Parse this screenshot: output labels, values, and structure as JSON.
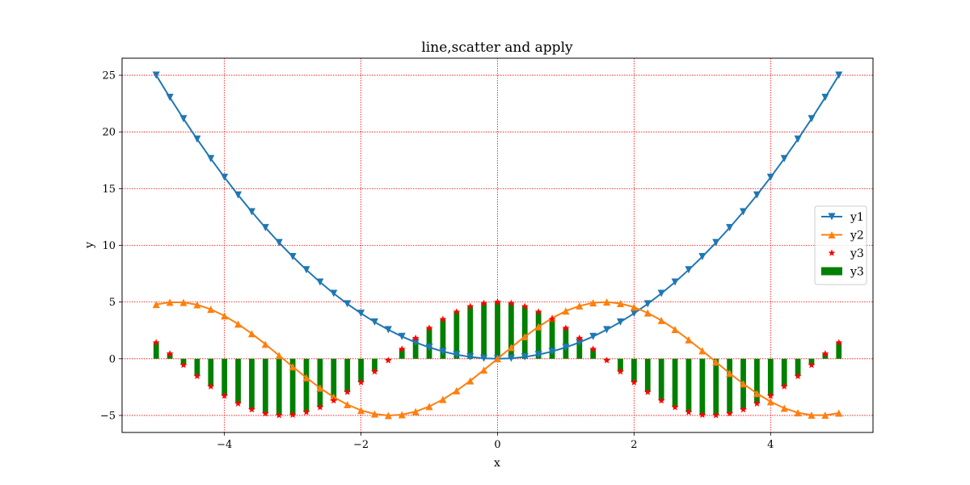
{
  "chart_data": {
    "type": "line",
    "title": "line,scatter and apply",
    "xlabel": "x",
    "ylabel": "y",
    "xlim": [
      -5.5,
      5.5
    ],
    "ylim": [
      -6.5,
      26.5
    ],
    "xticks": [
      -4,
      -2,
      0,
      2,
      4
    ],
    "xtick_labels": [
      "−4",
      "−2",
      "0",
      "2",
      "4"
    ],
    "yticks": [
      -5,
      0,
      5,
      10,
      15,
      20,
      25
    ],
    "ytick_labels": [
      "−5",
      "0",
      "5",
      "10",
      "15",
      "20",
      "25"
    ],
    "grid": true,
    "grid_color": "#ff0000",
    "legend_position": "center-right",
    "x": [
      -5.0,
      -4.8,
      -4.6,
      -4.4,
      -4.2,
      -4.0,
      -3.8,
      -3.6,
      -3.4,
      -3.2,
      -3.0,
      -2.8,
      -2.6,
      -2.4,
      -2.2,
      -2.0,
      -1.8,
      -1.6,
      -1.4,
      -1.2,
      -1.0,
      -0.8,
      -0.6,
      -0.4,
      -0.2,
      0.0,
      0.2,
      0.4,
      0.6,
      0.8,
      1.0,
      1.2,
      1.4,
      1.6,
      1.8,
      2.0,
      2.2,
      2.4,
      2.6,
      2.8,
      3.0,
      3.2,
      3.4,
      3.6,
      3.8,
      4.0,
      4.2,
      4.4,
      4.6,
      4.8,
      5.0
    ],
    "series": [
      {
        "name": "y1",
        "kind": "line",
        "marker": "triangle-down",
        "color": "#1f77b4",
        "values": [
          25.0,
          23.04,
          21.16,
          19.36,
          17.64,
          16.0,
          14.44,
          12.96,
          11.56,
          10.24,
          9.0,
          7.84,
          6.76,
          5.76,
          4.84,
          4.0,
          3.24,
          2.56,
          1.96,
          1.44,
          1.0,
          0.64,
          0.36,
          0.16,
          0.04,
          0.0,
          0.04,
          0.16,
          0.36,
          0.64,
          1.0,
          1.44,
          1.96,
          2.56,
          3.24,
          4.0,
          4.84,
          5.76,
          6.76,
          7.84,
          9.0,
          10.24,
          11.56,
          12.96,
          14.44,
          16.0,
          17.64,
          19.36,
          21.16,
          23.04,
          25.0
        ]
      },
      {
        "name": "y2",
        "kind": "line",
        "marker": "triangle-up",
        "color": "#ff7f0e",
        "values": [
          4.79,
          4.98,
          4.97,
          4.76,
          4.36,
          3.78,
          3.06,
          2.21,
          1.28,
          0.29,
          -0.71,
          -1.67,
          -2.58,
          -3.38,
          -4.04,
          -4.55,
          -4.87,
          -5.0,
          -4.93,
          -4.66,
          -4.21,
          -3.59,
          -2.82,
          -1.95,
          -0.99,
          0.0,
          0.99,
          1.95,
          2.82,
          3.59,
          4.21,
          4.66,
          4.93,
          5.0,
          4.87,
          4.55,
          4.04,
          3.38,
          2.58,
          1.67,
          0.71,
          -0.29,
          -1.28,
          -2.21,
          -3.06,
          -3.78,
          -4.36,
          -4.76,
          -4.97,
          -4.98,
          -4.79
        ]
      },
      {
        "name": "y3",
        "kind": "scatter",
        "marker": "star",
        "color": "#ff0000",
        "values": [
          1.42,
          0.44,
          -0.56,
          -1.54,
          -2.45,
          -3.27,
          -3.95,
          -4.48,
          -4.83,
          -4.99,
          -4.95,
          -4.71,
          -4.28,
          -3.69,
          -2.94,
          -2.08,
          -1.14,
          -0.15,
          0.85,
          1.81,
          2.7,
          3.48,
          4.13,
          4.61,
          4.9,
          5.0,
          4.9,
          4.61,
          4.13,
          3.48,
          2.7,
          1.81,
          0.85,
          -0.15,
          -1.14,
          -2.08,
          -2.94,
          -3.69,
          -4.28,
          -4.71,
          -4.95,
          -4.99,
          -4.83,
          -4.48,
          -3.95,
          -3.27,
          -2.45,
          -1.54,
          -0.56,
          0.44,
          1.42
        ]
      },
      {
        "name": "y3",
        "kind": "bar",
        "color": "#008000",
        "values": [
          1.42,
          0.44,
          -0.56,
          -1.54,
          -2.45,
          -3.27,
          -3.95,
          -4.48,
          -4.83,
          -4.99,
          -4.95,
          -4.71,
          -4.28,
          -3.69,
          -2.94,
          -2.08,
          -1.14,
          -0.15,
          0.85,
          1.81,
          2.7,
          3.48,
          4.13,
          4.61,
          4.9,
          5.0,
          4.9,
          4.61,
          4.13,
          3.48,
          2.7,
          1.81,
          0.85,
          -0.15,
          -1.14,
          -2.08,
          -2.94,
          -3.69,
          -4.28,
          -4.71,
          -4.95,
          -4.99,
          -4.83,
          -4.48,
          -3.95,
          -3.27,
          -2.45,
          -1.54,
          -0.56,
          0.44,
          1.42
        ]
      }
    ]
  }
}
